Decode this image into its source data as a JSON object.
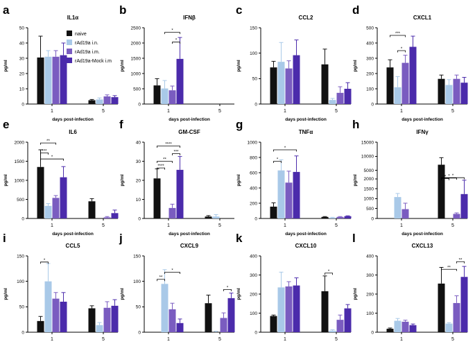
{
  "chart_data": {
    "type": "bar",
    "series_names": [
      "naive",
      "rAd19a i.n.",
      "rAd19a i.m.",
      "rAd19a-Mock i.m"
    ],
    "colors": [
      "#111111",
      "#a9c9e8",
      "#7a5cc0",
      "#4b2bab"
    ],
    "categories": [
      "1",
      "5"
    ],
    "xlabel": "days post-infection",
    "ylabel": "pg/ml",
    "panels": [
      {
        "letter": "a",
        "title": "IL1α",
        "ylim": [
          0,
          50
        ],
        "yticks": [
          0,
          10,
          20,
          30,
          40,
          50
        ],
        "tick_labels": [
          "0",
          "10",
          "20",
          "30",
          "40",
          "50"
        ],
        "values": [
          [
            30.5,
            31,
            31,
            32
          ],
          [
            2.5,
            3,
            5,
            4.5
          ]
        ],
        "errors": [
          [
            14,
            4,
            4,
            8
          ],
          [
            0.5,
            1,
            1,
            1
          ]
        ],
        "sig": []
      },
      {
        "letter": "b",
        "title": "IFNβ",
        "ylim": [
          0,
          2500
        ],
        "yticks": [
          0,
          500,
          1000,
          1500,
          2000,
          2500
        ],
        "tick_labels": [
          "0",
          "500",
          "1000",
          "1500",
          "2000",
          "2500"
        ],
        "values": [
          [
            610,
            510,
            450,
            1480
          ],
          [
            0,
            0,
            0,
            0
          ]
        ],
        "errors": [
          [
            220,
            260,
            140,
            700
          ],
          [
            0,
            0,
            0,
            0
          ]
        ],
        "sig": [
          {
            "day": 0,
            "from": 1,
            "to": 3,
            "y": 2350,
            "label": "*"
          },
          {
            "day": 0,
            "from": 2,
            "to": 3,
            "y": 2030,
            "label": "*"
          }
        ]
      },
      {
        "letter": "c",
        "title": "CCL2",
        "ylim": [
          0,
          150
        ],
        "yticks": [
          0,
          50,
          100,
          150
        ],
        "tick_labels": [
          "0",
          "50",
          "100",
          "150"
        ],
        "values": [
          [
            72,
            83,
            70,
            96
          ],
          [
            78,
            8,
            22,
            30
          ]
        ],
        "errors": [
          [
            12,
            38,
            15,
            30
          ],
          [
            30,
            3,
            12,
            12
          ]
        ],
        "sig": []
      },
      {
        "letter": "d",
        "title": "CXCL1",
        "ylim": [
          0,
          500
        ],
        "yticks": [
          0,
          100,
          200,
          300,
          400,
          500
        ],
        "tick_labels": [
          "0",
          "100",
          "200",
          "300",
          "400",
          "500"
        ],
        "values": [
          [
            240,
            110,
            270,
            375
          ],
          [
            165,
            125,
            165,
            140
          ]
        ],
        "errors": [
          [
            50,
            70,
            50,
            70
          ],
          [
            25,
            35,
            25,
            35
          ]
        ],
        "sig": [
          {
            "day": 0,
            "from": 0,
            "to": 2,
            "y": 450,
            "label": "***"
          },
          {
            "day": 0,
            "from": 1,
            "to": 2,
            "y": 350,
            "label": "*"
          }
        ]
      },
      {
        "letter": "e",
        "title": "IL6",
        "ylim": [
          0,
          2000
        ],
        "yticks": [
          0,
          500,
          1000,
          1500,
          2000
        ],
        "tick_labels": [
          "0",
          "500",
          "1000",
          "1500",
          "2000"
        ],
        "values": [
          [
            1350,
            330,
            540,
            1080
          ],
          [
            450,
            0,
            30,
            140
          ]
        ],
        "errors": [
          [
            450,
            60,
            60,
            280
          ],
          [
            70,
            0,
            20,
            80
          ]
        ],
        "sig": [
          {
            "day": 0,
            "from": 0,
            "to": 2,
            "y": 1980,
            "label": "**"
          },
          {
            "day": 0,
            "from": 0,
            "to": 1,
            "y": 1720,
            "label": "***"
          },
          {
            "day": 0,
            "from": 0,
            "to": 3,
            "y": 1560,
            "label": "*"
          }
        ]
      },
      {
        "letter": "f",
        "title": "GM-CSF",
        "ylim": [
          0,
          40
        ],
        "yticks": [
          0,
          10,
          20,
          30,
          40
        ],
        "tick_labels": [
          "0",
          "10",
          "20",
          "30",
          "40"
        ],
        "values": [
          [
            21,
            0,
            5.5,
            25.5
          ],
          [
            1,
            1,
            0,
            0
          ]
        ],
        "errors": [
          [
            5,
            0,
            2,
            7
          ],
          [
            0.5,
            1,
            0,
            0
          ]
        ],
        "sig": [
          {
            "day": 0,
            "from": 0,
            "to": 3,
            "y": 38,
            "label": "****"
          },
          {
            "day": 0,
            "from": 2,
            "to": 3,
            "y": 34,
            "label": "***"
          },
          {
            "day": 0,
            "from": 0,
            "to": 2,
            "y": 30,
            "label": "**"
          },
          {
            "day": 0,
            "from": 0,
            "to": 1,
            "y": 26.5,
            "label": "****"
          }
        ]
      },
      {
        "letter": "g",
        "title": "TNFα",
        "ylim": [
          0,
          1000
        ],
        "yticks": [
          0,
          200,
          400,
          600,
          800,
          1000
        ],
        "tick_labels": [
          "0",
          "200",
          "400",
          "600",
          "800",
          "1000"
        ],
        "values": [
          [
            155,
            630,
            470,
            610
          ],
          [
            20,
            10,
            20,
            30
          ]
        ],
        "errors": [
          [
            50,
            140,
            150,
            210
          ],
          [
            5,
            5,
            5,
            5
          ]
        ],
        "sig": [
          {
            "day": 0,
            "from": 0,
            "to": 3,
            "y": 900,
            "label": "*"
          },
          {
            "day": 0,
            "from": 0,
            "to": 1,
            "y": 750,
            "label": "*"
          }
        ]
      },
      {
        "letter": "h",
        "title": "IFNγ",
        "ylim": [
          0,
          2500
        ],
        "yticks": [
          0,
          500,
          1000,
          1500,
          2000
        ],
        "tick_labels": [
          "0",
          "500",
          "1000",
          "1500",
          "2000"
        ],
        "broken_axis": {
          "break_start": 2000,
          "top_ticks": [
            5000,
            10000,
            15000
          ],
          "top_tick_labels": [
            "5000",
            "10000",
            "15000"
          ],
          "top_max": 15000
        },
        "values": [
          [
            0,
            1080,
            470,
            0
          ],
          [
            7000,
            0,
            230,
            1230
          ]
        ],
        "errors": [
          [
            0,
            180,
            300,
            0
          ],
          [
            2500,
            0,
            50,
            700
          ]
        ],
        "sig": [
          {
            "day": 1,
            "from": 0,
            "to": 3,
            "y": 2400,
            "label": "*"
          },
          {
            "day": 1,
            "from": 0,
            "to": 2,
            "y": 2280,
            "label": "*"
          },
          {
            "day": 1,
            "from": 0,
            "to": 1,
            "y": 2120,
            "label": "*"
          }
        ]
      },
      {
        "letter": "i",
        "title": "CCL5",
        "ylim": [
          0,
          150
        ],
        "yticks": [
          0,
          50,
          100,
          150
        ],
        "tick_labels": [
          "0",
          "50",
          "100",
          "150"
        ],
        "values": [
          [
            22,
            100,
            66,
            60
          ],
          [
            47,
            14,
            48,
            52
          ]
        ],
        "errors": [
          [
            9,
            35,
            12,
            18
          ],
          [
            5,
            5,
            12,
            12
          ]
        ],
        "sig": [
          {
            "day": 0,
            "from": 0,
            "to": 1,
            "y": 138,
            "label": "*"
          }
        ]
      },
      {
        "letter": "j",
        "title": "CXCL9",
        "ylim": [
          0,
          150
        ],
        "yticks": [
          0,
          50,
          100,
          150
        ],
        "tick_labels": [
          "0",
          "50",
          "100",
          "150"
        ],
        "values": [
          [
            0,
            95,
            45,
            18
          ],
          [
            57,
            0,
            28,
            67
          ]
        ],
        "errors": [
          [
            0,
            28,
            12,
            8
          ],
          [
            16,
            2,
            10,
            10
          ]
        ],
        "sig": [
          {
            "day": 0,
            "from": 1,
            "to": 3,
            "y": 118,
            "label": "*"
          },
          {
            "day": 0,
            "from": 0,
            "to": 1,
            "y": 104,
            "label": "**"
          },
          {
            "day": 1,
            "from": 2,
            "to": 3,
            "y": 84,
            "label": "*"
          }
        ]
      },
      {
        "letter": "k",
        "title": "CXCL10",
        "ylim": [
          0,
          400
        ],
        "yticks": [
          0,
          100,
          200,
          300,
          400
        ],
        "tick_labels": [
          "0",
          "100",
          "200",
          "300",
          "400"
        ],
        "values": [
          [
            85,
            235,
            240,
            245
          ],
          [
            215,
            8,
            65,
            125
          ]
        ],
        "errors": [
          [
            5,
            80,
            25,
            40
          ],
          [
            80,
            5,
            25,
            20
          ]
        ],
        "sig": [
          {
            "day": 1,
            "from": 0,
            "to": 1,
            "y": 310,
            "label": "*"
          }
        ]
      },
      {
        "letter": "l",
        "title": "CXCL13",
        "ylim": [
          0,
          400
        ],
        "yticks": [
          0,
          100,
          200,
          300,
          400
        ],
        "tick_labels": [
          "0",
          "100",
          "200",
          "300",
          "400"
        ],
        "values": [
          [
            18,
            60,
            55,
            37
          ],
          [
            255,
            45,
            153,
            290
          ]
        ],
        "errors": [
          [
            4,
            12,
            8,
            6
          ],
          [
            85,
            5,
            38,
            55
          ]
        ],
        "sig": [
          {
            "day": 1,
            "from": 2,
            "to": 3,
            "y": 370,
            "label": "**"
          },
          {
            "day": 1,
            "from": 0,
            "to": 2,
            "y": 330,
            "label": "**"
          }
        ]
      }
    ]
  }
}
